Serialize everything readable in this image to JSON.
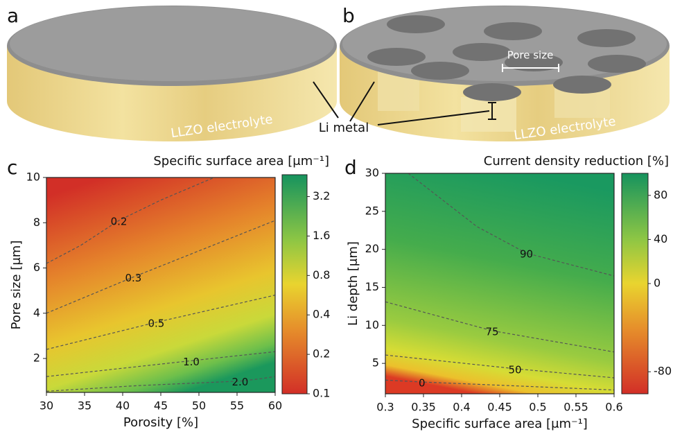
{
  "illustrations": {
    "a": {
      "panel_label": "a",
      "electrolyte_label": "LLZO electrolyte"
    },
    "b": {
      "panel_label": "b",
      "electrolyte_label": "LLZO electrolyte",
      "pore_label": "Pore size"
    },
    "li_metal_label": "Li metal"
  },
  "chart_data": [
    {
      "type": "heatmap",
      "panel_label": "c",
      "title": "Specific surface area [μm⁻¹]",
      "xlabel": "Porosity [%]",
      "ylabel": "Pore size [μm]",
      "xlim": [
        30,
        60
      ],
      "xticks": [
        30,
        35,
        40,
        45,
        50,
        55,
        60
      ],
      "ylim": [
        0.5,
        10
      ],
      "yticks": [
        2,
        4,
        6,
        8,
        10
      ],
      "colorbar": {
        "scale": "log",
        "clim": [
          0.1,
          4.7
        ],
        "ticks": [
          0.1,
          0.2,
          0.4,
          0.8,
          1.6,
          3.2
        ]
      },
      "contours": [
        {
          "level": 0.2,
          "x": [
            30,
            34.5,
            39.5,
            45,
            52
          ],
          "y": [
            6.2,
            7.0,
            8.1,
            9.0,
            10
          ]
        },
        {
          "level": 0.3,
          "x": [
            30,
            41.4,
            60
          ],
          "y": [
            4.0,
            5.6,
            8.1
          ]
        },
        {
          "level": 0.5,
          "x": [
            30,
            44.4,
            60
          ],
          "y": [
            2.4,
            3.6,
            4.8
          ]
        },
        {
          "level": {
            "value": 1,
            "label": "1.0"
          },
          "x": [
            30,
            49,
            60
          ],
          "y": [
            1.2,
            1.9,
            2.3
          ]
        },
        {
          "level": {
            "value": 2,
            "label": "2.0"
          },
          "x": [
            30,
            42,
            55.4,
            58,
            60
          ],
          "y": [
            0.55,
            0.8,
            1.0,
            1.1,
            1.2
          ]
        }
      ]
    },
    {
      "type": "heatmap",
      "panel_label": "d",
      "title": "Current density reduction [%]",
      "xlabel": "Specific surface area [μm⁻¹]",
      "ylabel": "Li depth [μm]",
      "xlim": [
        0.3,
        0.6
      ],
      "xticks": [
        0.3,
        0.35,
        0.4,
        0.45,
        0.5,
        0.55,
        0.6
      ],
      "ylim": [
        1,
        30
      ],
      "yticks": [
        5,
        10,
        15,
        20,
        25,
        30
      ],
      "colorbar": {
        "scale": "linear",
        "clim": [
          -100,
          100
        ],
        "ticks": [
          -80,
          0,
          40,
          80
        ]
      },
      "contours": [
        {
          "level": 90,
          "x": [
            0.33,
            0.42,
            0.485,
            0.55,
            0.6
          ],
          "y": [
            30,
            23,
            19.5,
            17.8,
            16.5
          ]
        },
        {
          "level": 75,
          "x": [
            0.3,
            0.44,
            0.6
          ],
          "y": [
            13.1,
            9.3,
            6.5
          ]
        },
        {
          "level": 50,
          "x": [
            0.3,
            0.47,
            0.6
          ],
          "y": [
            6.1,
            4.3,
            3.1
          ]
        },
        {
          "level": 0,
          "x": [
            0.3,
            0.348,
            0.6
          ],
          "y": [
            2.8,
            2.55,
            1.5
          ]
        }
      ]
    }
  ]
}
